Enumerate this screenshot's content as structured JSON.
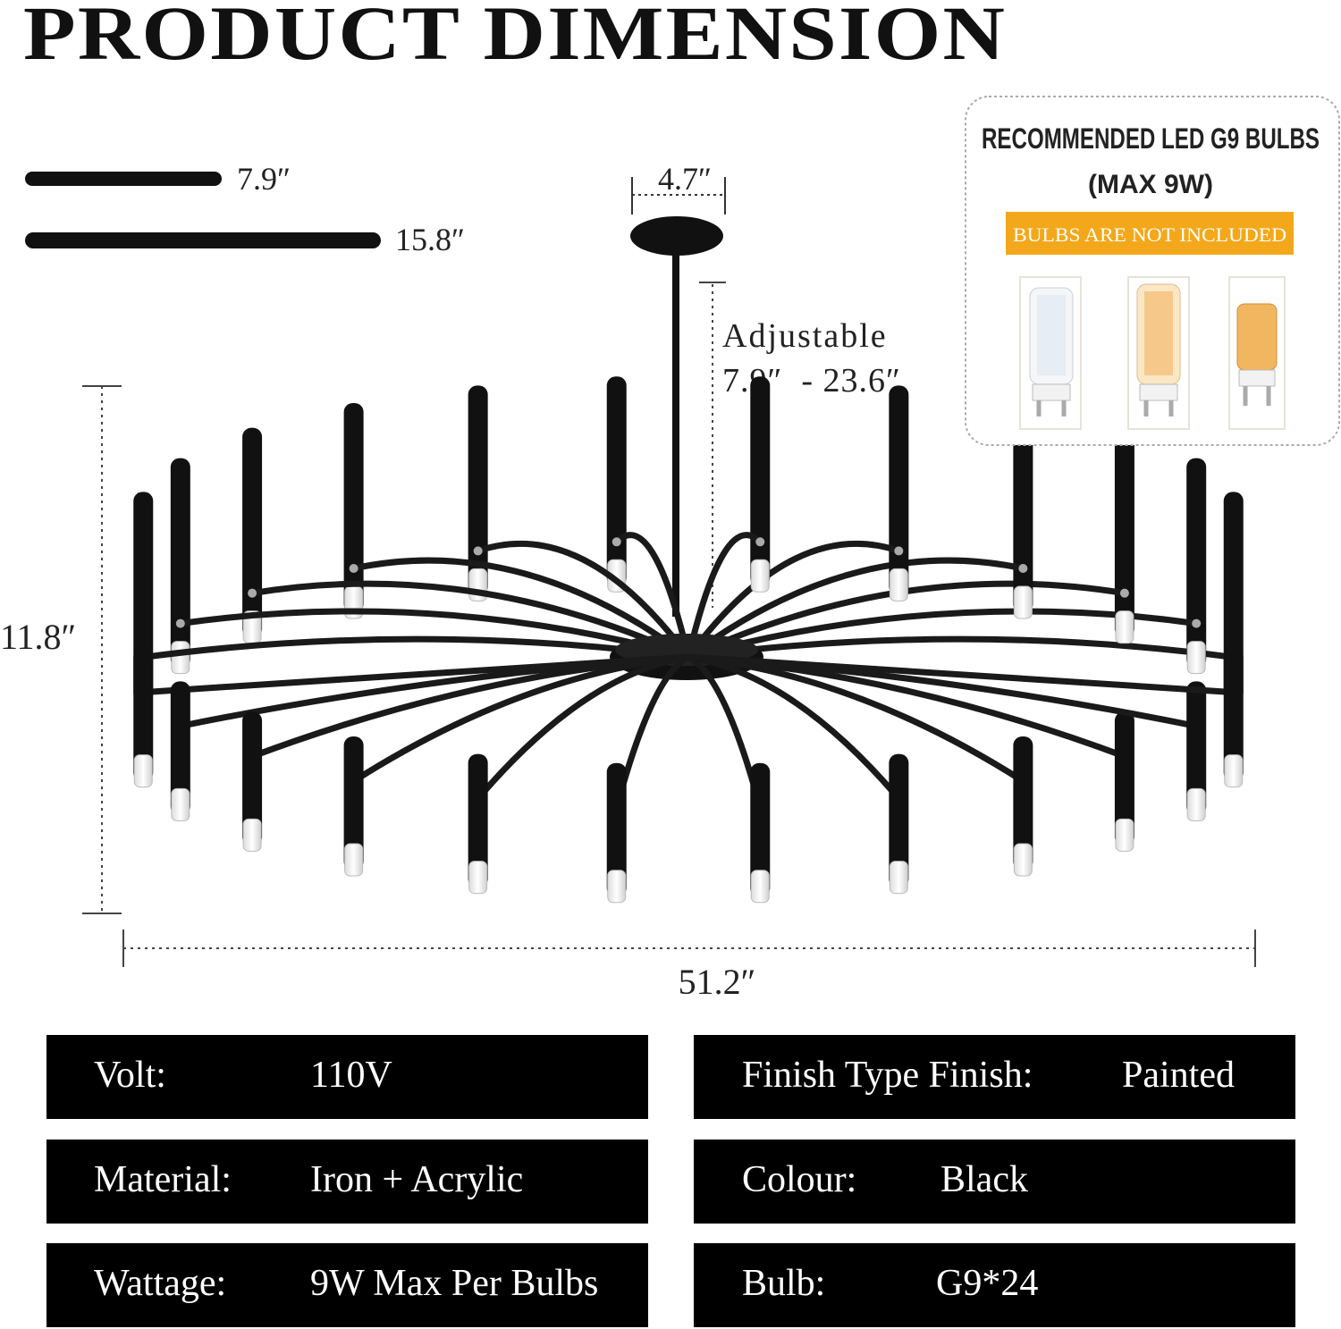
{
  "header": {
    "title": "PRODUCT DIMENSION"
  },
  "arm_lengths": [
    "7.9″",
    "15.8″"
  ],
  "dimensions": {
    "canopy": "4.7″",
    "adjustable_label": "Adjustable",
    "adjustable_range": "7.9″  - 23.6″",
    "height": "11.8″",
    "width": "51.2″"
  },
  "bulb_box": {
    "title": "RECOMMENDED LED G9 BULBS",
    "subtitle": "(MAX 9W)",
    "notice": "BULBS ARE NOT INCLUDED"
  },
  "specs": {
    "left": [
      [
        "Volt:",
        "110V"
      ],
      [
        "Material:",
        "Iron + Acrylic"
      ],
      [
        "Wattage:",
        "9W Max Per Bulbs"
      ]
    ],
    "right": [
      [
        "Finish Type Finish:",
        "Painted"
      ],
      [
        "Colour:",
        "Black"
      ],
      [
        "Bulb:",
        "G9*24"
      ]
    ]
  }
}
